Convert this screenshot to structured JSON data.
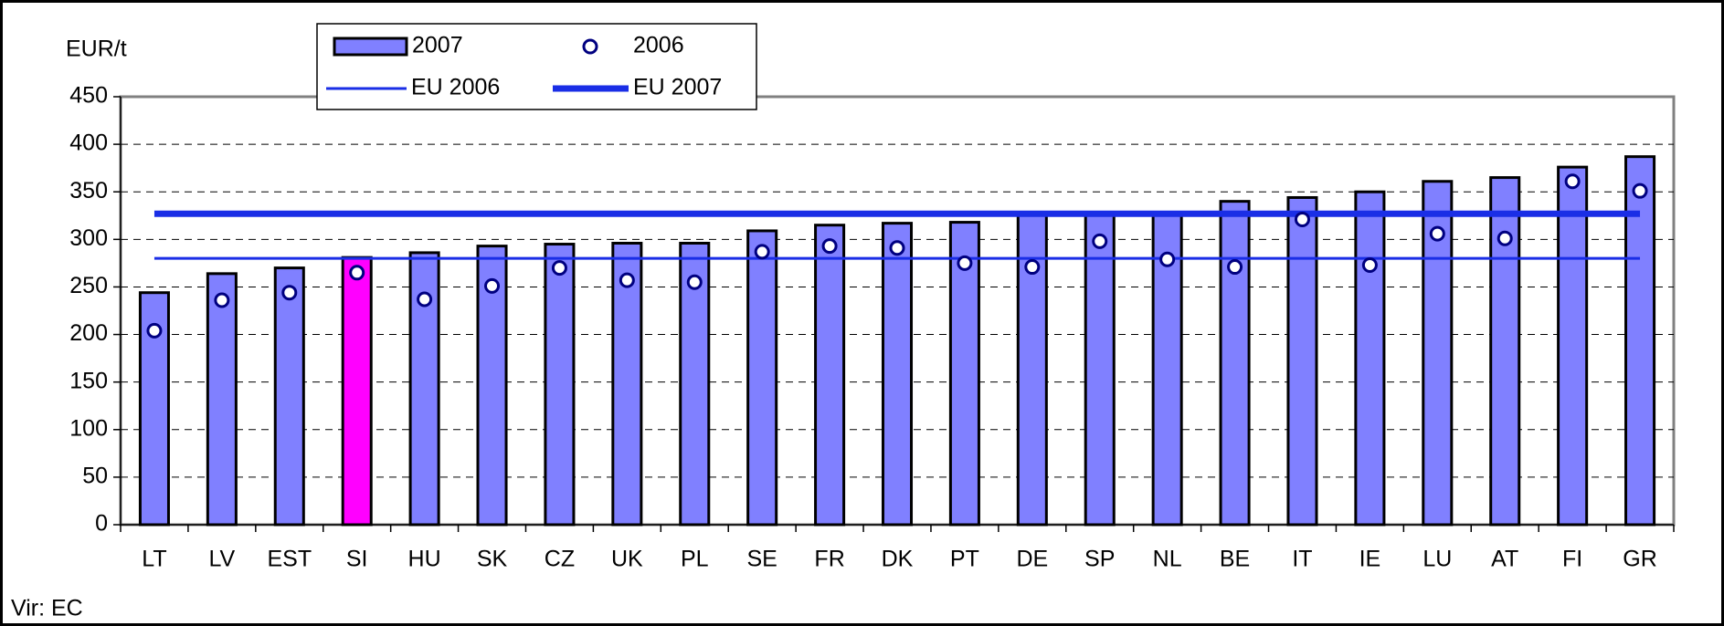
{
  "chart_data": {
    "type": "bar",
    "y_label": "EUR/t",
    "source": "Vir: EC",
    "categories": [
      "LT",
      "LV",
      "EST",
      "SI",
      "HU",
      "SK",
      "CZ",
      "UK",
      "PL",
      "SE",
      "FR",
      "DK",
      "PT",
      "DE",
      "SP",
      "NL",
      "BE",
      "IT",
      "IE",
      "LU",
      "AT",
      "FI",
      "GR"
    ],
    "series": [
      {
        "name": "2007",
        "type": "bar",
        "color": "#8080ff",
        "colors": [
          "#8080ff",
          "#8080ff",
          "#8080ff",
          "#ff00ff",
          "#8080ff",
          "#8080ff",
          "#8080ff",
          "#8080ff",
          "#8080ff",
          "#8080ff",
          "#8080ff",
          "#8080ff",
          "#8080ff",
          "#8080ff",
          "#8080ff",
          "#8080ff",
          "#8080ff",
          "#8080ff",
          "#8080ff",
          "#8080ff",
          "#8080ff",
          "#8080ff",
          "#8080ff"
        ],
        "values": [
          244,
          264,
          270,
          281,
          286,
          293,
          295,
          296,
          296,
          309,
          315,
          317,
          318,
          328,
          328,
          328,
          340,
          344,
          350,
          361,
          365,
          376,
          387
        ]
      },
      {
        "name": "2006",
        "type": "scatter",
        "color": "#000080",
        "values": [
          204,
          236,
          244,
          265,
          237,
          251,
          270,
          257,
          255,
          287,
          293,
          291,
          275,
          271,
          298,
          279,
          271,
          321,
          273,
          306,
          301,
          361,
          351
        ]
      }
    ],
    "reference_lines": [
      {
        "name": "EU 2006",
        "value": 280,
        "color": "#1a2ee6",
        "thick": false
      },
      {
        "name": "EU 2007",
        "value": 327,
        "color": "#1a2ee6",
        "thick": true
      }
    ],
    "ylim": [
      0,
      450
    ],
    "yticks": [
      0,
      50,
      100,
      150,
      200,
      250,
      300,
      350,
      400,
      450
    ],
    "grid": true
  }
}
